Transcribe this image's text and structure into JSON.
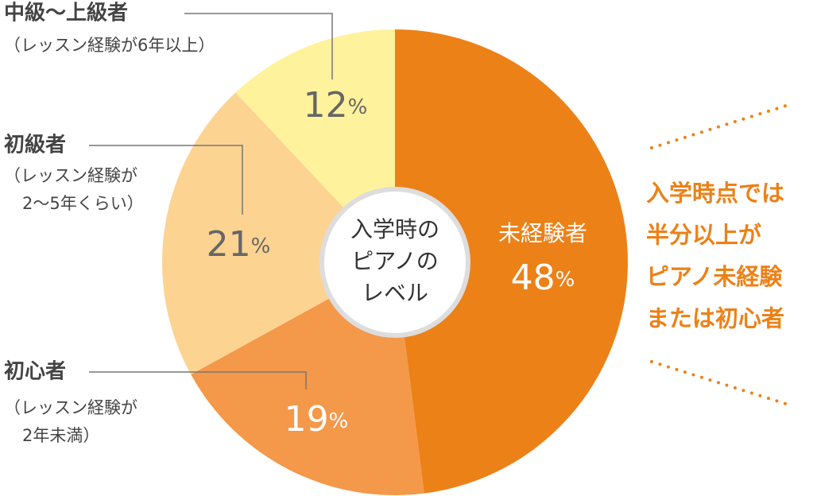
{
  "chart_data": {
    "type": "pie",
    "title": [
      "入学時の",
      "ピアノの",
      "レベル"
    ],
    "categories": [
      "未経験者",
      "初心者",
      "初級者",
      "中級～上級者"
    ],
    "notes": [
      null,
      [
        "（レッスン経験が",
        "2年未満）"
      ],
      [
        "（レッスン経験が",
        "2～5年くらい）"
      ],
      [
        "（レッスン経験が6年以上）"
      ]
    ],
    "values": [
      48,
      19,
      21,
      12
    ],
    "value_labels": [
      "48%",
      "19%",
      "21%",
      "12%"
    ],
    "colors": [
      "#ec8118",
      "#f4984a",
      "#fdd391",
      "#fff29c"
    ],
    "annotation": [
      "入学時点では",
      "半分以上が",
      "ピアノ未経験",
      "または初心者"
    ]
  }
}
